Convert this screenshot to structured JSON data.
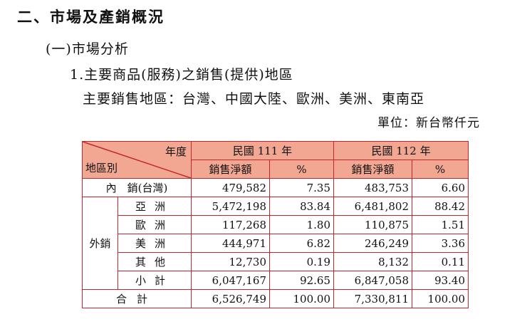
{
  "heading": {
    "section": "二、市場及產銷概況",
    "subsection": "(一)市場分析",
    "item": "1.主要商品(服務)之銷售(提供)地區",
    "regions_line": "主要銷售地區：台灣、中國大陸、歐洲、美洲、東南亞",
    "unit": "單位：新台幣仟元"
  },
  "table": {
    "corner_year": "年度",
    "corner_region": "地區別",
    "years": [
      "民國 111 年",
      "民國 112 年"
    ],
    "col_amount": "銷售淨額",
    "col_pct": "%",
    "domestic": {
      "label": "內　銷(台灣)",
      "amt111": "479,582",
      "pct111": "7.35",
      "amt112": "483,753",
      "pct112": "6.60"
    },
    "export_label": "外銷",
    "export_rows": [
      {
        "label": "亞洲",
        "amt111": "5,472,198",
        "pct111": "83.84",
        "amt112": "6,481,802",
        "pct112": "88.42"
      },
      {
        "label": "歐洲",
        "amt111": "117,268",
        "pct111": "1.80",
        "amt112": "110,875",
        "pct112": "1.51"
      },
      {
        "label": "美洲",
        "amt111": "444,971",
        "pct111": "6.82",
        "amt112": "246,249",
        "pct112": "3.36"
      },
      {
        "label": "其他",
        "amt111": "12,730",
        "pct111": "0.19",
        "amt112": "8,132",
        "pct112": "0.11"
      },
      {
        "label": "小計",
        "amt111": "6,047,167",
        "pct111": "92.65",
        "amt112": "6,847,058",
        "pct112": "93.40"
      }
    ],
    "total": {
      "label": "合計",
      "amt111": "6,526,749",
      "pct111": "100.00",
      "amt112": "7,330,811",
      "pct112": "100.00"
    }
  },
  "colors": {
    "border": "#c2272d",
    "header_fill": "#f2a792"
  }
}
